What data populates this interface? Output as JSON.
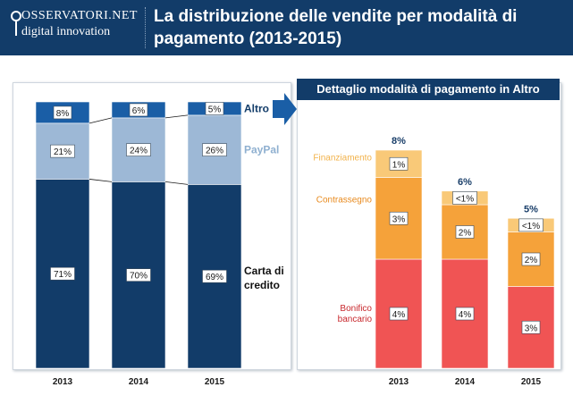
{
  "header": {
    "logo_line1": "OSSERVATORI.NET",
    "logo_line2": "digital innovation",
    "title": "La distribuzione delle vendite per modalità di pagamento (2013-2015)"
  },
  "colors": {
    "header_bg": "#123c69",
    "credit_card": "#123c69",
    "paypal": "#9db8d6",
    "altro": "#1a5ea6",
    "bonifico": "#f05454",
    "contrassegno": "#f5a23a",
    "finanziamento": "#f9c978"
  },
  "chart_data": [
    {
      "type": "bar",
      "stacked": true,
      "normalized": true,
      "categories": [
        "2013",
        "2014",
        "2015"
      ],
      "series": [
        {
          "name": "Carta di credito",
          "values": [
            71,
            70,
            69
          ],
          "labels": [
            "71%",
            "70%",
            "69%"
          ]
        },
        {
          "name": "PayPal",
          "values": [
            21,
            24,
            26
          ],
          "labels": [
            "21%",
            "24%",
            "26%"
          ]
        },
        {
          "name": "Altro",
          "values": [
            8,
            6,
            5
          ],
          "labels": [
            "8%",
            "6%",
            "5%"
          ]
        }
      ]
    },
    {
      "type": "bar",
      "stacked": true,
      "title": "Dettaglio modalità di pagamento in Altro",
      "categories": [
        "2013",
        "2014",
        "2015"
      ],
      "totals": [
        8,
        6,
        5
      ],
      "total_labels": [
        "8%",
        "6%",
        "5%"
      ],
      "series": [
        {
          "name": "Bonifico bancario",
          "values": [
            4,
            4,
            3
          ],
          "labels": [
            "4%",
            "4%",
            "3%"
          ]
        },
        {
          "name": "Contrassegno",
          "values": [
            3,
            2,
            2
          ],
          "labels": [
            "3%",
            "2%",
            "2%"
          ]
        },
        {
          "name": "Finanziamento",
          "values": [
            1,
            0.5,
            0.5
          ],
          "labels": [
            "1%",
            "<1%",
            "<1%"
          ]
        }
      ],
      "legend_placement": "left"
    }
  ]
}
